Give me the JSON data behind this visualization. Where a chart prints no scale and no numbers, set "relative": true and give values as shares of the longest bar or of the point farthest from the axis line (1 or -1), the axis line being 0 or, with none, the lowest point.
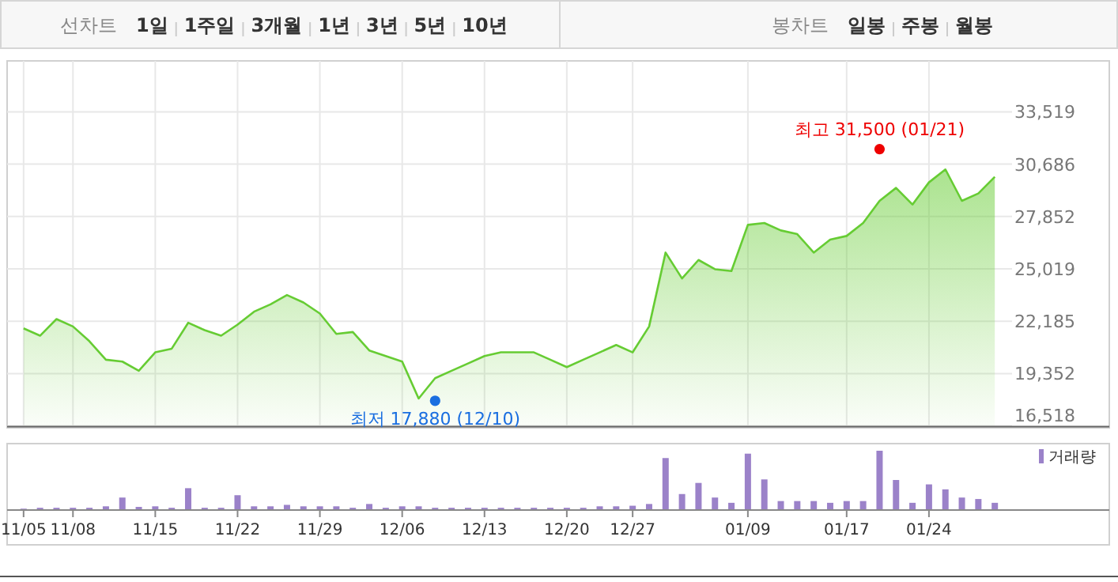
{
  "chart_data": [
    {
      "type": "other",
      "annotations": [
        "선차트",
        "1일",
        "1주일",
        "3개월",
        "1년",
        "3년",
        "5년",
        "10년"
      ]
    },
    {
      "type": "other",
      "annotations": [
        "봉차트",
        "일봉",
        "주봉",
        "월봉"
      ]
    },
    {
      "type": "area",
      "categories": [
        null,
        null,
        null,
        null,
        null,
        null,
        null,
        null,
        null,
        null,
        null,
        null,
        null,
        null,
        null,
        null,
        null,
        null,
        null,
        null,
        null,
        null,
        null,
        null,
        null,
        null,
        null,
        null,
        null,
        null,
        null,
        null,
        null,
        null,
        null,
        null,
        null,
        null,
        null,
        null,
        null,
        null,
        null,
        null,
        null,
        null,
        null,
        null,
        null,
        null,
        null,
        null,
        null,
        null,
        null,
        null,
        null,
        null,
        null,
        null
      ],
      "series": [
        {
          "type": "area",
          "color": "#66cc33",
          "values": [
            21800,
            21400,
            22300,
            21900,
            21100,
            20100,
            20000,
            19500,
            20500,
            20700,
            22100,
            21700,
            21400,
            22000,
            22700,
            23100,
            23600,
            23200,
            22600,
            21500,
            21600,
            20600,
            20300,
            20000,
            18000,
            19100,
            19500,
            19900,
            20300,
            20500,
            20500,
            20500,
            20100,
            19700,
            20100,
            20500,
            20900,
            20500,
            21900,
            25900,
            24500,
            25500,
            25000,
            24900,
            27400,
            27500,
            27100,
            26900,
            25900,
            26600,
            26800,
            27500,
            28700,
            29400,
            28500,
            29700,
            30400,
            28700,
            29100,
            30000
          ]
        },
        {
          "type": "scatter",
          "color": "#ee0000",
          "values": [
            null,
            null,
            null,
            null,
            null,
            null,
            null,
            null,
            null,
            null,
            null,
            null,
            null,
            null,
            null,
            null,
            null,
            null,
            null,
            null,
            null,
            null,
            null,
            null,
            null,
            null,
            null,
            null,
            null,
            null,
            null,
            null,
            null,
            null,
            null,
            null,
            null,
            null,
            null,
            null,
            null,
            null,
            null,
            null,
            null,
            null,
            null,
            null,
            null,
            null,
            null,
            null,
            31500,
            null,
            null,
            null,
            null,
            null,
            null,
            null
          ]
        },
        {
          "type": "scatter",
          "color": "#1a6ee0",
          "values": [
            null,
            null,
            null,
            null,
            null,
            null,
            null,
            null,
            null,
            null,
            null,
            null,
            null,
            null,
            null,
            null,
            null,
            null,
            null,
            null,
            null,
            null,
            null,
            null,
            null,
            17880,
            null,
            null,
            null,
            null,
            null,
            null,
            null,
            null,
            null,
            null,
            null,
            null,
            null,
            null,
            null,
            null,
            null,
            null,
            null,
            null,
            null,
            null,
            null,
            null,
            null,
            null,
            null,
            null,
            null,
            null,
            null,
            null,
            null,
            null
          ]
        }
      ],
      "annotations": [
        {
          "text": "최고 31,500 (01/21)",
          "y": 31500
        },
        {
          "text": "최저 17,880 (12/10)",
          "y": 17880
        }
      ],
      "ylim": [
        16518,
        33519
      ],
      "yticks": [
        {
          "value": 16518,
          "label": "16,518"
        },
        {
          "value": 19352,
          "label": "19,352"
        },
        {
          "value": 22185,
          "label": "22,185"
        },
        {
          "value": 25019,
          "label": "25,019"
        },
        {
          "value": 27852,
          "label": "27,852"
        },
        {
          "value": 30686,
          "label": "30,686"
        },
        {
          "value": 33519,
          "label": "33,519"
        }
      ],
      "grid": true,
      "tick_labels": "y"
    },
    {
      "type": "bar",
      "categories": [
        "11/05",
        null,
        null,
        "11/08",
        null,
        null,
        null,
        null,
        "11/15",
        null,
        null,
        null,
        null,
        "11/22",
        null,
        null,
        null,
        null,
        "11/29",
        null,
        null,
        null,
        null,
        "12/06",
        null,
        null,
        null,
        null,
        "12/13",
        null,
        null,
        null,
        null,
        "12/20",
        null,
        null,
        null,
        "12/27",
        null,
        null,
        null,
        null,
        null,
        null,
        "01/09",
        null,
        null,
        null,
        null,
        null,
        "01/17",
        null,
        null,
        null,
        null,
        "01/24",
        null,
        null,
        null,
        null
      ],
      "series": [
        {
          "name": "거래량",
          "color": "#9b82c9",
          "values": [
            0.01,
            0.025,
            0.025,
            0.025,
            0.025,
            0.05,
            0.2,
            0.04,
            0.05,
            0.025,
            0.36,
            0.025,
            0.025,
            0.24,
            0.05,
            0.05,
            0.075,
            0.05,
            0.05,
            0.05,
            0.025,
            0.09,
            0.025,
            0.05,
            0.05,
            0.025,
            0.025,
            0.025,
            0.025,
            0.025,
            0.025,
            0.025,
            0.025,
            0.025,
            0.025,
            0.05,
            0.05,
            0.06,
            0.09,
            0.875,
            0.26,
            0.45,
            0.2,
            0.11,
            0.95,
            0.51,
            0.14,
            0.14,
            0.14,
            0.11,
            0.14,
            0.14,
            1,
            0.5,
            0.11,
            0.425,
            0.34,
            0.2,
            0.175,
            0.11
          ]
        }
      ],
      "relative": true,
      "tick_labels": "x",
      "legend": "top right"
    }
  ]
}
